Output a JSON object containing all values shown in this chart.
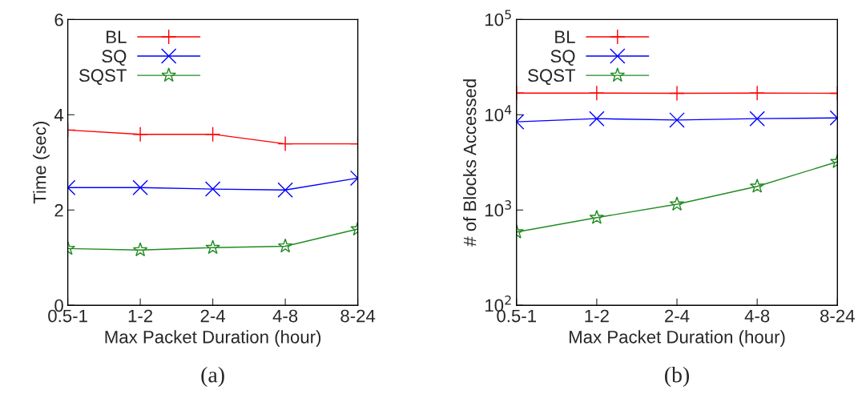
{
  "chart_data": [
    {
      "type": "line",
      "title": "(a)",
      "xlabel": "Max Packet Duration (hour)",
      "ylabel": "Time (sec)",
      "categories": [
        "0.5-1",
        "1-2",
        "2-4",
        "4-8",
        "8-24"
      ],
      "series": [
        {
          "name": "BL",
          "color": "#ff0000",
          "marker": "plus",
          "values": [
            3.68,
            3.59,
            3.59,
            3.39,
            3.39
          ]
        },
        {
          "name": "SQ",
          "color": "#0000ff",
          "marker": "cross",
          "values": [
            2.47,
            2.47,
            2.44,
            2.42,
            2.67
          ]
        },
        {
          "name": "SQST",
          "color": "#228b22",
          "marker": "star",
          "values": [
            1.19,
            1.16,
            1.21,
            1.24,
            1.6
          ]
        }
      ],
      "ylim": [
        0,
        6
      ],
      "yticks": [
        0,
        2,
        4,
        6
      ],
      "legend": "top left",
      "grid": false
    },
    {
      "type": "line",
      "title": "(b)",
      "xlabel": "Max Packet Duration (hour)",
      "ylabel": "# of Blocks Accessed",
      "categories": [
        "0.5-1",
        "1-2",
        "2-4",
        "4-8",
        "8-24"
      ],
      "series": [
        {
          "name": "BL",
          "color": "#ff0000",
          "marker": "plus",
          "values": [
            16900,
            16900,
            16800,
            16900,
            16800
          ]
        },
        {
          "name": "SQ",
          "color": "#0000ff",
          "marker": "cross",
          "values": [
            8430,
            9100,
            8800,
            9100,
            9270
          ]
        },
        {
          "name": "SQST",
          "color": "#228b22",
          "marker": "star",
          "values": [
            587,
            832,
            1150,
            1770,
            3210
          ]
        }
      ],
      "log": true,
      "ylim": [
        100,
        100000
      ],
      "yticks": [
        {
          "value": 100,
          "label": "10$^{2}$"
        },
        {
          "value": 1000,
          "label": "10$^{3}$"
        },
        {
          "value": 10000,
          "label": "10$^{4}$"
        },
        {
          "value": 100000,
          "label": "10$^{5}$"
        }
      ],
      "legend": "top left",
      "grid": false
    }
  ]
}
